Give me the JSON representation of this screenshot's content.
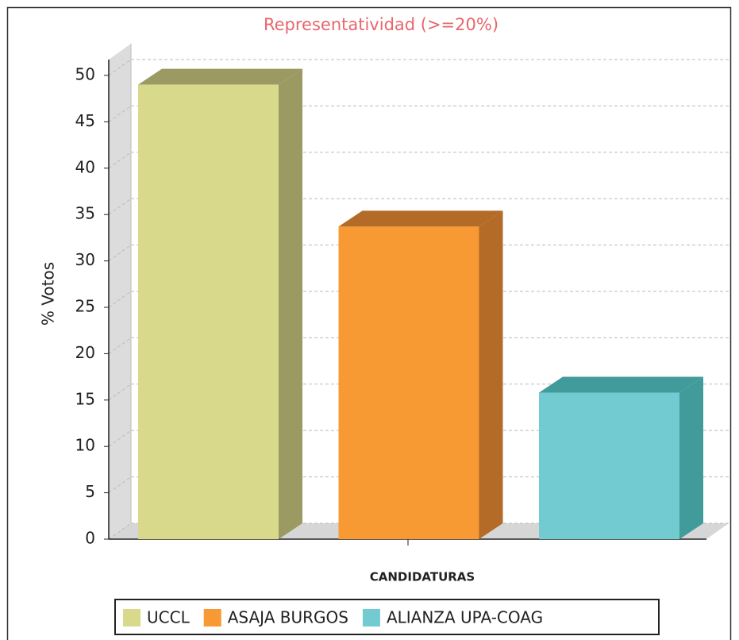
{
  "chart_data": {
    "type": "bar",
    "title": "Representatividad (>=20%)",
    "y_label": "% Votos",
    "x_label": "CANDIDATURAS",
    "categories": [
      "UCCL",
      "ASAJA BURGOS",
      "ALIANZA UPA-COAG"
    ],
    "values": [
      49,
      33.7,
      15.8
    ],
    "colors": [
      "#d9d98c",
      "#f79a33",
      "#72cbd0"
    ],
    "side_colors": [
      "#9a9a62",
      "#b36b27",
      "#429b9b"
    ],
    "ylim": [
      0,
      50
    ],
    "yticks": [
      0,
      5,
      10,
      15,
      20,
      25,
      30,
      35,
      40,
      45,
      50
    ],
    "grid": true
  }
}
